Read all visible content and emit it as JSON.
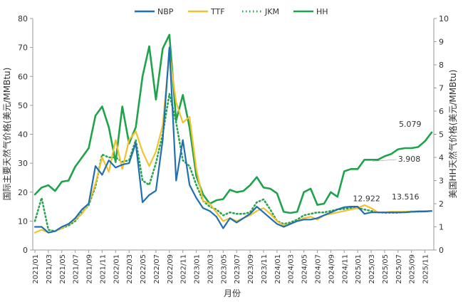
{
  "chart_data": {
    "type": "line",
    "xlabel": "月份",
    "ylabel_left": "国际主要天然气价格(美元/MMBtu)",
    "ylabel_right": "美国HH天然气价格(美元/MMBtu)",
    "ylim_left": [
      0,
      80
    ],
    "ylim_right": [
      0,
      10
    ],
    "yticks_left": [
      "0",
      "10",
      "20",
      "30",
      "40",
      "50",
      "60",
      "70",
      "80"
    ],
    "yticks_right": [
      "0",
      "1",
      "2",
      "3",
      "4",
      "5",
      "6",
      "7",
      "8",
      "9",
      "10"
    ],
    "legend_position": "top",
    "grid": false,
    "x": [
      "2021/01",
      "2021/02",
      "2021/03",
      "2021/04",
      "2021/05",
      "2021/06",
      "2021/07",
      "2021/08",
      "2021/09",
      "2021/10",
      "2021/11",
      "2021/12",
      "2022/01",
      "2022/02",
      "2022/03",
      "2022/04",
      "2022/05",
      "2022/06",
      "2022/07",
      "2022/08",
      "2022/09",
      "2022/10",
      "2022/11",
      "2022/12",
      "2023/01",
      "2023/02",
      "2023/03",
      "2023/04",
      "2023/05",
      "2023/06",
      "2023/07",
      "2023/08",
      "2023/09",
      "2023/10",
      "2023/11",
      "2023/12",
      "2024/01",
      "2024/02",
      "2024/03",
      "2024/04",
      "2024/05",
      "2024/06",
      "2024/07",
      "2024/08",
      "2024/09",
      "2024/10",
      "2024/11",
      "2024/12",
      "2025/01",
      "2025/02",
      "2025/03",
      "2025/04",
      "2025/05",
      "2025/06",
      "2025/07",
      "2025/08",
      "2025/09",
      "2025/10",
      "2025/11",
      "2025/12"
    ],
    "x_tick_labels": [
      "2021/01",
      "2021/03",
      "2021/05",
      "2021/07",
      "2021/09",
      "2021/11",
      "2022/01",
      "2022/03",
      "2022/05",
      "2022/07",
      "2022/09",
      "2022/11",
      "2023/01",
      "2023/03",
      "2023/05",
      "2023/07",
      "2023/09",
      "2023/11",
      "2024/01",
      "2024/03",
      "2024/05",
      "2024/07",
      "2024/09",
      "2024/11",
      "2025/01",
      "2025/03",
      "2025/05",
      "2025/07",
      "2025/09",
      "2025/11"
    ],
    "series": [
      {
        "name": "NBP",
        "axis": "left",
        "color": "#1f6fb2",
        "style": "solid",
        "values": [
          8,
          8,
          6,
          6.5,
          8,
          9,
          11,
          14,
          16,
          29,
          26,
          31,
          28.5,
          29.5,
          30,
          37,
          16.5,
          19,
          20.5,
          38,
          70,
          24,
          38,
          22.5,
          18,
          14.5,
          13.5,
          11.5,
          7.5,
          11,
          9.5,
          11,
          12.5,
          15,
          13,
          11,
          9,
          8,
          9,
          10,
          10.5,
          10.5,
          11,
          12,
          13,
          14,
          14.8,
          15,
          15,
          12.5,
          13,
          13,
          13,
          13,
          13,
          13,
          13.2,
          13.3,
          13.3,
          13.5
        ]
      },
      {
        "name": "TTF",
        "axis": "left",
        "color": "#f2c12e",
        "style": "solid",
        "values": [
          6,
          7,
          6,
          6.5,
          7.5,
          9,
          10.5,
          12.5,
          16,
          23,
          32,
          27,
          38,
          28,
          38,
          41,
          34,
          29,
          34,
          43,
          68,
          51,
          44,
          46,
          28,
          17,
          16,
          13,
          10,
          11,
          10,
          11,
          12,
          13.5,
          14.5,
          12.5,
          10,
          8.5,
          9,
          10,
          11,
          11.5,
          10.5,
          12,
          12.5,
          13,
          13.5,
          14,
          14.5,
          15.5,
          14.5,
          13,
          13,
          13.2,
          13.2,
          13.2,
          13.3,
          13.5,
          13.5,
          13.5
        ]
      },
      {
        "name": "JKM",
        "axis": "left",
        "color": "#2ca44e",
        "style": "dotted",
        "values": [
          10,
          18,
          7,
          6.5,
          7.5,
          8.5,
          10,
          13,
          15.5,
          22,
          33,
          32,
          32,
          30.5,
          31,
          38,
          24,
          22.5,
          30,
          40,
          54,
          44,
          31,
          29,
          22.5,
          17,
          15,
          14,
          12,
          13,
          12.5,
          12.5,
          13,
          16.5,
          17.5,
          14,
          10,
          9,
          9.5,
          10.5,
          12,
          12.5,
          13,
          13,
          13.5,
          14,
          14.2,
          14.5,
          14.5,
          14,
          13.5,
          13,
          12.9,
          12.9,
          12.9,
          13.2,
          13.3,
          13.3,
          13.4,
          13.5
        ]
      },
      {
        "name": "HH",
        "axis": "right",
        "color": "#1fa34a",
        "style": "solid",
        "values": [
          2.4,
          2.7,
          2.8,
          2.55,
          2.95,
          3.0,
          3.6,
          4.0,
          4.4,
          5.8,
          6.2,
          5.3,
          3.8,
          6.2,
          4.6,
          5.3,
          7.5,
          8.8,
          6.5,
          8.7,
          9.3,
          5.6,
          6.7,
          5.3,
          3.2,
          2.4,
          2.0,
          2.15,
          2.2,
          2.6,
          2.5,
          2.55,
          2.8,
          3.15,
          2.7,
          2.65,
          2.45,
          1.65,
          1.6,
          1.65,
          2.5,
          2.65,
          1.95,
          2.0,
          2.5,
          2.3,
          3.4,
          3.5,
          3.5,
          3.9,
          3.9,
          3.9,
          4.05,
          4.15,
          4.35,
          4.4,
          4.4,
          4.45,
          4.7,
          5.079
        ]
      }
    ],
    "annotations": [
      {
        "text": "5.079",
        "series": "HH",
        "index": 59
      },
      {
        "text": "3.908",
        "series": "HH",
        "index": 50
      },
      {
        "text": "12.922",
        "series": "JKM",
        "index": 53
      },
      {
        "text": "13.516",
        "series": "NBP",
        "index": 59
      }
    ]
  }
}
